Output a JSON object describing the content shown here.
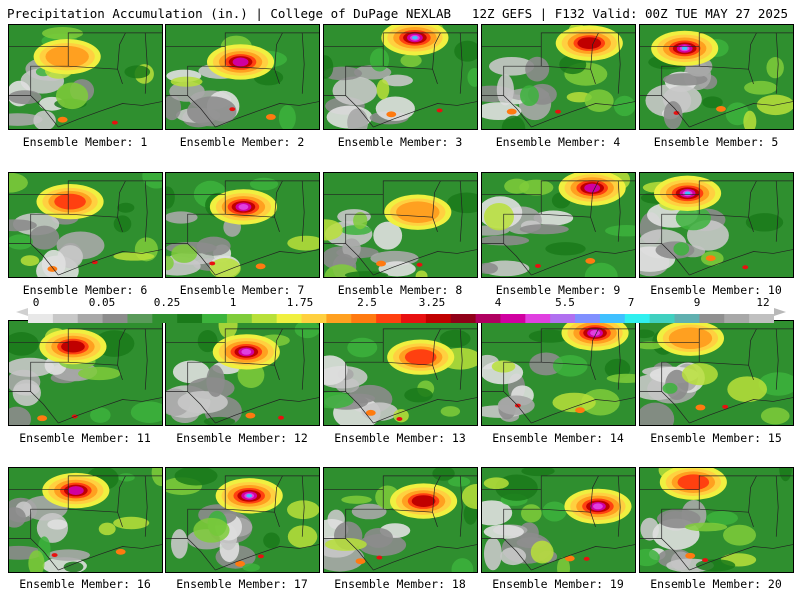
{
  "header": {
    "left": "Precipitation Accumulation (in.) | College of DuPage NEXLAB",
    "right": "12Z GEFS | F132 Valid: 00Z TUE MAY 27 2025"
  },
  "panel_caption_prefix": "Ensemble Member:",
  "members": [
    {
      "label": "Ensemble Member: 1"
    },
    {
      "label": "Ensemble Member: 2"
    },
    {
      "label": "Ensemble Member: 3"
    },
    {
      "label": "Ensemble Member: 4"
    },
    {
      "label": "Ensemble Member: 5"
    },
    {
      "label": "Ensemble Member: 6"
    },
    {
      "label": "Ensemble Member: 7"
    },
    {
      "label": "Ensemble Member: 8"
    },
    {
      "label": "Ensemble Member: 9"
    },
    {
      "label": "Ensemble Member: 10"
    },
    {
      "label": "Ensemble Member: 11"
    },
    {
      "label": "Ensemble Member: 12"
    },
    {
      "label": "Ensemble Member: 13"
    },
    {
      "label": "Ensemble Member: 14"
    },
    {
      "label": "Ensemble Member: 15"
    },
    {
      "label": "Ensemble Member: 16"
    },
    {
      "label": "Ensemble Member: 17"
    },
    {
      "label": "Ensemble Member: 18"
    },
    {
      "label": "Ensemble Member: 19"
    },
    {
      "label": "Ensemble Member: 20"
    }
  ],
  "colorbar": {
    "labels": [
      "0",
      "0.05",
      "0.25",
      "1",
      "1.75",
      "2.5",
      "3.25",
      "4",
      "5.5",
      "7",
      "9",
      "12"
    ],
    "colors": [
      "#e8e8e8",
      "#c8c8c8",
      "#a8a8a8",
      "#8c8c8c",
      "#5a9a5a",
      "#2f8f2f",
      "#1a7a1a",
      "#3cb33c",
      "#7fcc3a",
      "#b8e03a",
      "#f0f040",
      "#ffd040",
      "#ffa020",
      "#ff7a10",
      "#ff4010",
      "#e81010",
      "#c00000",
      "#900018",
      "#b00060",
      "#d000a0",
      "#e040e0",
      "#b070f0",
      "#8090ff",
      "#40c0ff",
      "#30f0f0",
      "#40d0c0",
      "#60b0b0",
      "#909090",
      "#a8a8a8",
      "#c0c0c0"
    ]
  }
}
